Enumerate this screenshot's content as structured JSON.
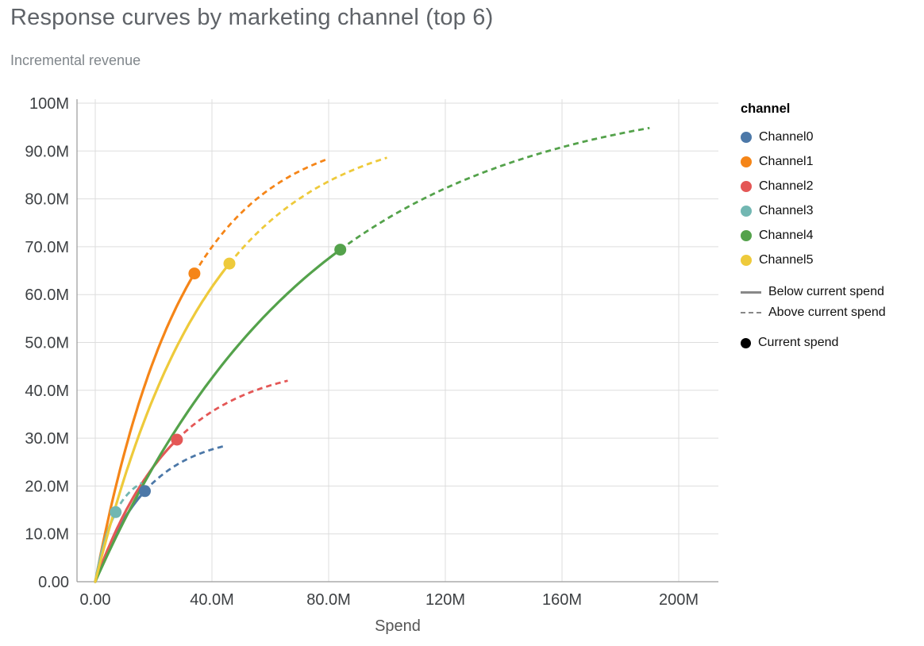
{
  "page": {
    "title": "Response curves by marketing channel (top 6)",
    "subtitle": "Incremental revenue"
  },
  "legend": {
    "title": "channel",
    "entries": [
      {
        "label": "Channel0",
        "color": "#4c78a8"
      },
      {
        "label": "Channel1",
        "color": "#f58518"
      },
      {
        "label": "Channel2",
        "color": "#e45756"
      },
      {
        "label": "Channel3",
        "color": "#72b7b2"
      },
      {
        "label": "Channel4",
        "color": "#54a24b"
      },
      {
        "label": "Channel5",
        "color": "#eeca3b"
      }
    ],
    "line_styles": [
      {
        "label": "Below current spend",
        "style": "solid"
      },
      {
        "label": "Above current spend",
        "style": "dashed"
      }
    ],
    "symbol": {
      "label": "Current spend",
      "color": "#000000"
    }
  },
  "chart_data": {
    "type": "line",
    "title": "Response curves by marketing channel (top 6)",
    "subtitle": "Incremental revenue",
    "xlabel": "Spend",
    "ylabel": "Incremental revenue",
    "units": "millions",
    "grid": true,
    "legend_position": "right",
    "xlim": [
      -6,
      214
    ],
    "ylim": [
      0,
      100
    ],
    "x_ticks": [
      {
        "value": 0,
        "label": "0.00"
      },
      {
        "value": 40,
        "label": "40.0M"
      },
      {
        "value": 80,
        "label": "80.0M"
      },
      {
        "value": 120,
        "label": "120M"
      },
      {
        "value": 160,
        "label": "160M"
      },
      {
        "value": 200,
        "label": "200M"
      }
    ],
    "y_ticks": [
      {
        "value": 0,
        "label": "0.00"
      },
      {
        "value": 10,
        "label": "10.0M"
      },
      {
        "value": 20,
        "label": "20.0M"
      },
      {
        "value": 30,
        "label": "30.0M"
      },
      {
        "value": 40,
        "label": "40.0M"
      },
      {
        "value": 50,
        "label": "50.0M"
      },
      {
        "value": 60,
        "label": "60.0M"
      },
      {
        "value": 70,
        "label": "70.0M"
      },
      {
        "value": 80,
        "label": "80.0M"
      },
      {
        "value": 90,
        "label": "90.0M"
      },
      {
        "value": 100,
        "label": "100M"
      }
    ],
    "curve_model": "y_millions = A * (1 - exp(-x_millions / s)); solid below current spend, dashed above",
    "series": [
      {
        "name": "Channel0",
        "color": "#4c78a8",
        "A": 31,
        "s": 18,
        "current_spend": {
          "x": 17,
          "y": 18.9
        },
        "solid_x_range": [
          0,
          17
        ],
        "dashed_x_range": [
          17,
          44
        ],
        "curve_end": {
          "x": 44,
          "y": 28.3
        }
      },
      {
        "name": "Channel1",
        "color": "#f58518",
        "A": 95,
        "s": 30,
        "current_spend": {
          "x": 34,
          "y": 64.4
        },
        "solid_x_range": [
          0,
          34
        ],
        "dashed_x_range": [
          34,
          79
        ],
        "curve_end": {
          "x": 79,
          "y": 88.2
        }
      },
      {
        "name": "Channel2",
        "color": "#e45756",
        "A": 46,
        "s": 27,
        "current_spend": {
          "x": 28,
          "y": 29.7
        },
        "solid_x_range": [
          0,
          28
        ],
        "dashed_x_range": [
          28,
          66
        ],
        "curve_end": {
          "x": 66,
          "y": 42.0
        }
      },
      {
        "name": "Channel3",
        "color": "#72b7b2",
        "A": 23,
        "s": 7,
        "current_spend": {
          "x": 7,
          "y": 14.5
        },
        "solid_x_range": [
          0,
          7
        ],
        "dashed_x_range": [
          7,
          16
        ],
        "curve_end": {
          "x": 16,
          "y": 20.7
        }
      },
      {
        "name": "Channel4",
        "color": "#54a24b",
        "A": 103,
        "s": 75,
        "current_spend": {
          "x": 84,
          "y": 69.4
        },
        "solid_x_range": [
          0,
          84
        ],
        "dashed_x_range": [
          84,
          190
        ],
        "curve_end": {
          "x": 190,
          "y": 94.8
        }
      },
      {
        "name": "Channel5",
        "color": "#eeca3b",
        "A": 96,
        "s": 39,
        "current_spend": {
          "x": 46,
          "y": 66.5
        },
        "solid_x_range": [
          0,
          46
        ],
        "dashed_x_range": [
          46,
          100
        ],
        "curve_end": {
          "x": 100,
          "y": 88.6
        }
      }
    ]
  }
}
